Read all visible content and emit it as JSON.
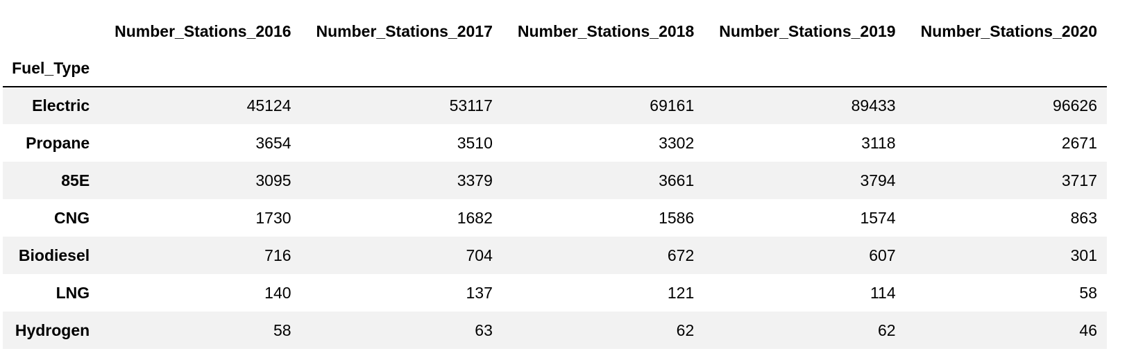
{
  "table": {
    "index_name": "Fuel_Type",
    "columns": [
      "Number_Stations_2016",
      "Number_Stations_2017",
      "Number_Stations_2018",
      "Number_Stations_2019",
      "Number_Stations_2020"
    ],
    "rows": [
      {
        "label": "Electric",
        "values": [
          "45124",
          "53117",
          "69161",
          "89433",
          "96626"
        ]
      },
      {
        "label": "Propane",
        "values": [
          "3654",
          "3510",
          "3302",
          "3118",
          "2671"
        ]
      },
      {
        "label": "85E",
        "values": [
          "3095",
          "3379",
          "3661",
          "3794",
          "3717"
        ]
      },
      {
        "label": "CNG",
        "values": [
          "1730",
          "1682",
          "1586",
          "1574",
          "863"
        ]
      },
      {
        "label": "Biodiesel",
        "values": [
          "716",
          "704",
          "672",
          "607",
          "301"
        ]
      },
      {
        "label": "LNG",
        "values": [
          "140",
          "137",
          "121",
          "114",
          "58"
        ]
      },
      {
        "label": "Hydrogen",
        "values": [
          "58",
          "63",
          "62",
          "62",
          "46"
        ]
      }
    ]
  }
}
